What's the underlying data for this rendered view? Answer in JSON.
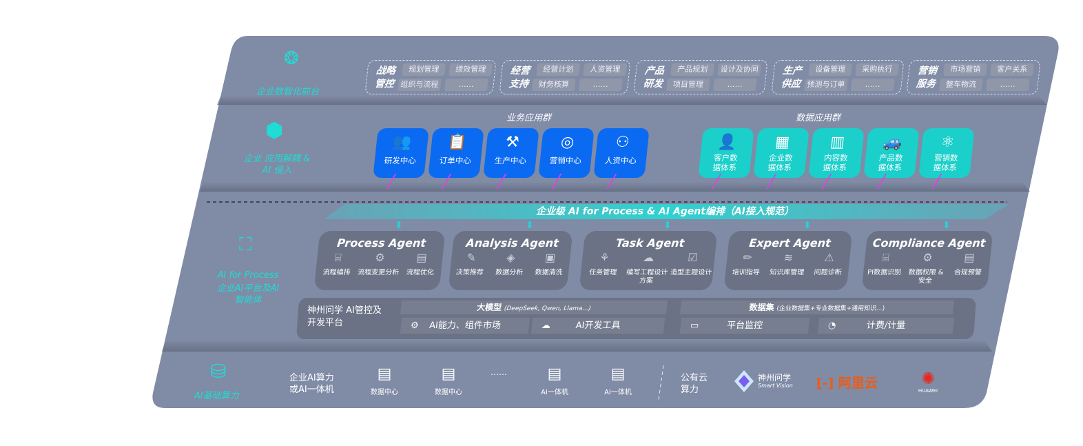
{
  "layers": {
    "frontend": {
      "label": "企业数智化前台",
      "icon": "brain-icon",
      "groups": [
        {
          "title": "战略管控",
          "items": [
            "规划管理",
            "绩效管理",
            "组织与流程",
            "……"
          ]
        },
        {
          "title": "经营支持",
          "items": [
            "经营计划",
            "人资管理",
            "财务核算",
            "……"
          ]
        },
        {
          "title": "产品研发",
          "items": [
            "产品规划",
            "设计及协同",
            "项目管理",
            "……"
          ]
        },
        {
          "title": "生产供应",
          "items": [
            "设备管理",
            "采购执行",
            "预测与订单",
            "……"
          ]
        },
        {
          "title": "营销服务",
          "items": [
            "市场营销",
            "客户关系",
            "整车物流",
            "……"
          ]
        }
      ]
    },
    "apps": {
      "label": "企业 应用解耦 & AI 侵入",
      "icon": "molecule-icon",
      "business_title": "业务应用群",
      "business": [
        {
          "label": "研发中心",
          "icon": "users-icon"
        },
        {
          "label": "订单中心",
          "icon": "clipboard-icon"
        },
        {
          "label": "生产中心",
          "icon": "production-icon"
        },
        {
          "label": "营销中心",
          "icon": "target-icon"
        },
        {
          "label": "人资中心",
          "icon": "person-icon"
        }
      ],
      "data_title": "数据应用群",
      "data": [
        {
          "label": "客户数据体系",
          "icon": "user-icon"
        },
        {
          "label": "企业数据体系",
          "icon": "building-icon"
        },
        {
          "label": "内容数据体系",
          "icon": "books-icon"
        },
        {
          "label": "产品数据体系",
          "icon": "car-icon"
        },
        {
          "label": "营销数据体系",
          "icon": "atom-icon"
        }
      ],
      "colors": {
        "business": "#0a6af2",
        "data": "#1bcfca",
        "arrow": "#e040e6"
      }
    },
    "ai": {
      "label_en": "AI for Process",
      "label_cn": "企业AI平台及AI智能体",
      "icon": "face-scan-icon",
      "banner": "企业级 AI for Process & AI Agent编排（AI接入规范）",
      "agents": [
        {
          "title": "Process Agent",
          "items": [
            "流程编排",
            "流程变更分析",
            "流程优化"
          ]
        },
        {
          "title": "Analysis Agent",
          "items": [
            "决策推荐",
            "数据分析",
            "数据清洗"
          ]
        },
        {
          "title": "Task Agent",
          "items": [
            "任务管理",
            "编写工程设计方案",
            "造型主题设计"
          ]
        },
        {
          "title": "Expert Agent",
          "items": [
            "培训指导",
            "知识库管理",
            "问题诊断"
          ]
        },
        {
          "title": "Compliance Agent",
          "items": [
            "PI数据识别",
            "数据权限 & 安全",
            "合规预警"
          ]
        }
      ],
      "platform": {
        "title": "神州问学 AI管控及开发平台",
        "model": "大模型",
        "model_note": "(DeepSeek, Qwen, Llama...)",
        "dataset": "数据集",
        "dataset_note": "(企业数据集+专业数据集+通用知识...)",
        "tools": [
          "AI能力、组件市场",
          "AI开发工具",
          "平台监控",
          "计费/计量"
        ]
      }
    },
    "compute": {
      "label": "AI基础算力",
      "icon": "database-icon",
      "private_label": "企业AI算力或AI一体机",
      "servers": [
        "数据中心",
        "数据中心",
        "AI一体机",
        "AI一体机"
      ],
      "ellipsis": "……",
      "public_label": "公有云算力",
      "vendors": [
        {
          "name": "神州问学",
          "sub": "Smart Vision"
        },
        {
          "name": "阿里云"
        },
        {
          "name": "HUAWEI"
        }
      ]
    }
  }
}
